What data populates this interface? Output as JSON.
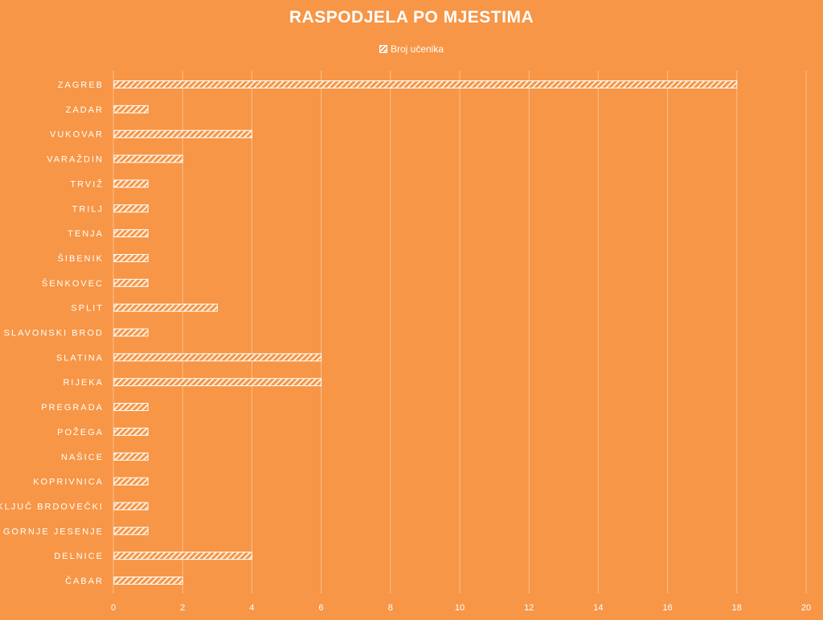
{
  "chart_data": {
    "type": "bar",
    "orientation": "horizontal",
    "title": "RASPODJELA PO MJESTIMA",
    "legend": {
      "position": "top"
    },
    "categories": [
      "ZAGREB",
      "ZADAR",
      "VUKOVAR",
      "VARAŽDIN",
      "TRVIŽ",
      "TRILJ",
      "TENJA",
      "ŠIBENIK",
      "ŠENKOVEC",
      "SPLIT",
      "SLAVONSKI BROD",
      "SLATINA",
      "RIJEKA",
      "PREGRADA",
      "POŽEGA",
      "NAŠICE",
      "KOPRIVNICA",
      "KLJUČ BRDOVEČKI",
      "GORNJE JESENJE",
      "DELNICE",
      "ČABAR"
    ],
    "series": [
      {
        "name": "Broj učenika",
        "values": [
          18,
          1,
          4,
          2,
          1,
          1,
          1,
          1,
          1,
          3,
          1,
          6,
          6,
          1,
          1,
          1,
          1,
          1,
          1,
          4,
          2
        ]
      }
    ],
    "xlim": [
      0,
      20
    ],
    "xticks": [
      0,
      2,
      4,
      6,
      8,
      10,
      12,
      14,
      16,
      18,
      20
    ],
    "grid": true,
    "colors": {
      "background": "#F79646",
      "bar": "#FFFFFF",
      "text": "#FFFFFF",
      "grid": "#FBC08F"
    }
  }
}
